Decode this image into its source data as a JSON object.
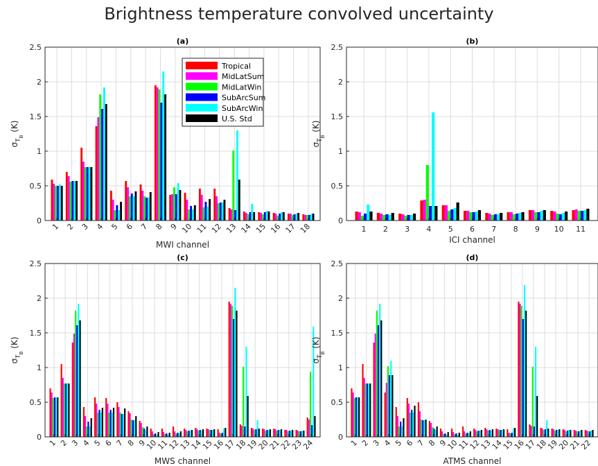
{
  "title": "Brightness temperature convolved uncertainty",
  "colors": {
    "Tropical": "#ff0000",
    "MidLatSum": "#ff00ff",
    "MidLatWin": "#00ff00",
    "SubArcSum": "#0000ff",
    "SubArcWin": "#00ffff",
    "U.S. Std": "#000000"
  },
  "chart_data": [
    {
      "type": "bar",
      "panel": "(a)",
      "xlabel": "MWI channel",
      "ylabel": "σ_TB (K)",
      "ylim": [
        0,
        2.5
      ],
      "yticks": [
        0,
        0.5,
        1,
        1.5,
        2,
        2.5
      ],
      "grid": true,
      "legend": "top-right",
      "categories": [
        "1",
        "2",
        "3",
        "4",
        "5",
        "6",
        "7",
        "8",
        "9",
        "10",
        "11",
        "12",
        "13",
        "14",
        "15",
        "16",
        "17",
        "18"
      ],
      "series": [
        {
          "name": "Tropical",
          "values": [
            0.59,
            0.7,
            1.05,
            1.36,
            0.43,
            0.57,
            0.52,
            1.95,
            0.37,
            0.4,
            0.46,
            0.46,
            0.18,
            0.13,
            0.12,
            0.11,
            0.1,
            0.09
          ]
        },
        {
          "name": "MidLatSum",
          "values": [
            0.53,
            0.64,
            0.85,
            1.49,
            0.3,
            0.48,
            0.43,
            1.92,
            0.38,
            0.3,
            0.37,
            0.35,
            0.16,
            0.11,
            0.11,
            0.1,
            0.1,
            0.08
          ]
        },
        {
          "name": "MidLatWin",
          "values": [
            0.5,
            0.56,
            0.77,
            1.82,
            0.15,
            0.35,
            0.35,
            1.89,
            0.48,
            0.16,
            0.19,
            0.25,
            1.01,
            0.09,
            0.09,
            0.07,
            0.08,
            0.08
          ]
        },
        {
          "name": "SubArcSum",
          "values": [
            0.5,
            0.57,
            0.77,
            1.61,
            0.22,
            0.39,
            0.33,
            1.7,
            0.38,
            0.21,
            0.27,
            0.26,
            0.15,
            0.12,
            0.12,
            0.1,
            0.09,
            0.08
          ]
        },
        {
          "name": "SubArcWin",
          "values": [
            0.52,
            0.57,
            0.77,
            1.92,
            0.15,
            0.35,
            0.33,
            2.15,
            0.54,
            0.16,
            0.2,
            0.26,
            1.3,
            0.24,
            0.14,
            0.12,
            0.1,
            0.09
          ]
        },
        {
          "name": "U.S. Std",
          "values": [
            0.5,
            0.57,
            0.77,
            1.68,
            0.27,
            0.42,
            0.41,
            1.82,
            0.44,
            0.22,
            0.31,
            0.3,
            0.59,
            0.12,
            0.13,
            0.12,
            0.11,
            0.1
          ]
        }
      ]
    },
    {
      "type": "bar",
      "panel": "(b)",
      "xlabel": "ICI channel",
      "ylabel": "σ_TB (K)",
      "ylim": [
        0,
        2.5
      ],
      "yticks": [
        0,
        0.5,
        1,
        1.5,
        2,
        2.5
      ],
      "grid": true,
      "categories": [
        "1",
        "2",
        "3",
        "4",
        "5",
        "6",
        "7",
        "8",
        "9",
        "10",
        "11"
      ],
      "series": [
        {
          "name": "Tropical",
          "values": [
            0.13,
            0.11,
            0.1,
            0.29,
            0.22,
            0.14,
            0.11,
            0.12,
            0.15,
            0.14,
            0.15
          ]
        },
        {
          "name": "MidLatSum",
          "values": [
            0.12,
            0.1,
            0.09,
            0.3,
            0.22,
            0.14,
            0.1,
            0.12,
            0.15,
            0.13,
            0.16
          ]
        },
        {
          "name": "MidLatWin",
          "values": [
            0.07,
            0.08,
            0.07,
            0.8,
            0.14,
            0.12,
            0.08,
            0.09,
            0.12,
            0.1,
            0.14
          ]
        },
        {
          "name": "SubArcSum",
          "values": [
            0.1,
            0.09,
            0.08,
            0.21,
            0.16,
            0.12,
            0.09,
            0.1,
            0.12,
            0.09,
            0.14
          ]
        },
        {
          "name": "SubArcWin",
          "values": [
            0.23,
            0.08,
            0.08,
            1.56,
            0.18,
            0.13,
            0.09,
            0.11,
            0.14,
            0.11,
            0.15
          ]
        },
        {
          "name": "U.S. Std",
          "values": [
            0.13,
            0.11,
            0.1,
            0.21,
            0.26,
            0.15,
            0.11,
            0.12,
            0.15,
            0.13,
            0.17
          ]
        }
      ]
    },
    {
      "type": "bar",
      "panel": "(c)",
      "xlabel": "MWS channel",
      "ylabel": "σ_TB (K)",
      "ylim": [
        0,
        2.5
      ],
      "yticks": [
        0,
        0.5,
        1,
        1.5,
        2,
        2.5
      ],
      "grid": true,
      "categories": [
        "1",
        "2",
        "3",
        "4",
        "5",
        "6",
        "7",
        "8",
        "9",
        "10",
        "11",
        "12",
        "13",
        "14",
        "15",
        "16",
        "17",
        "18",
        "19",
        "20",
        "21",
        "22",
        "23",
        "24"
      ],
      "series": [
        {
          "name": "Tropical",
          "values": [
            0.7,
            1.05,
            1.36,
            0.43,
            0.57,
            0.56,
            0.5,
            0.37,
            0.23,
            0.12,
            0.12,
            0.15,
            0.12,
            0.13,
            0.12,
            0.11,
            1.95,
            0.18,
            0.13,
            0.12,
            0.12,
            0.1,
            0.1,
            0.28
          ]
        },
        {
          "name": "MidLatSum",
          "values": [
            0.64,
            0.85,
            1.49,
            0.3,
            0.48,
            0.48,
            0.43,
            0.34,
            0.2,
            0.08,
            0.07,
            0.08,
            0.1,
            0.11,
            0.11,
            0.06,
            1.92,
            0.16,
            0.12,
            0.11,
            0.11,
            0.1,
            0.09,
            0.25
          ]
        },
        {
          "name": "MidLatWin",
          "values": [
            0.56,
            0.77,
            1.82,
            0.15,
            0.35,
            0.35,
            0.35,
            0.25,
            0.14,
            0.04,
            0.04,
            0.05,
            0.08,
            0.09,
            0.1,
            0.05,
            1.89,
            1.01,
            0.1,
            0.09,
            0.09,
            0.08,
            0.08,
            0.94
          ]
        },
        {
          "name": "SubArcSum",
          "values": [
            0.57,
            0.77,
            1.61,
            0.22,
            0.39,
            0.39,
            0.33,
            0.24,
            0.12,
            0.05,
            0.05,
            0.06,
            0.09,
            0.1,
            0.1,
            0.06,
            1.7,
            0.15,
            0.11,
            0.1,
            0.1,
            0.09,
            0.08,
            0.17
          ]
        },
        {
          "name": "SubArcWin",
          "values": [
            0.57,
            0.77,
            1.92,
            0.15,
            0.35,
            0.35,
            0.33,
            0.24,
            0.1,
            0.03,
            0.03,
            0.05,
            0.09,
            0.09,
            0.1,
            0.12,
            2.15,
            1.3,
            0.24,
            0.1,
            0.1,
            0.09,
            0.09,
            1.59
          ]
        },
        {
          "name": "U.S. Std",
          "values": [
            0.57,
            0.77,
            1.68,
            0.27,
            0.42,
            0.42,
            0.41,
            0.3,
            0.15,
            0.07,
            0.06,
            0.08,
            0.1,
            0.11,
            0.11,
            0.13,
            1.82,
            0.59,
            0.12,
            0.11,
            0.11,
            0.1,
            0.09,
            0.3
          ]
        }
      ]
    },
    {
      "type": "bar",
      "panel": "(d)",
      "xlabel": "ATMS channel",
      "ylabel": "σ_TB (K)",
      "ylim": [
        0,
        2.5
      ],
      "yticks": [
        0,
        0.5,
        1,
        1.5,
        2,
        2.5
      ],
      "grid": true,
      "categories": [
        "1",
        "2",
        "3",
        "4",
        "5",
        "6",
        "7",
        "8",
        "9",
        "10",
        "11",
        "12",
        "13",
        "14",
        "15",
        "16",
        "17",
        "18",
        "19",
        "20",
        "21",
        "22"
      ],
      "series": [
        {
          "name": "Tropical",
          "values": [
            0.7,
            1.05,
            1.36,
            0.64,
            0.43,
            0.56,
            0.5,
            0.23,
            0.12,
            0.12,
            0.15,
            0.12,
            0.13,
            0.12,
            0.11,
            1.95,
            0.18,
            0.13,
            0.12,
            0.11,
            0.1,
            0.1
          ]
        },
        {
          "name": "MidLatSum",
          "values": [
            0.64,
            0.85,
            1.49,
            0.78,
            0.3,
            0.48,
            0.37,
            0.2,
            0.08,
            0.07,
            0.08,
            0.1,
            0.11,
            0.11,
            0.06,
            1.92,
            0.16,
            0.12,
            0.11,
            0.1,
            0.09,
            0.09
          ]
        },
        {
          "name": "MidLatWin",
          "values": [
            0.56,
            0.77,
            1.82,
            1.02,
            0.15,
            0.35,
            0.25,
            0.14,
            0.04,
            0.04,
            0.05,
            0.08,
            0.09,
            0.1,
            0.05,
            1.89,
            1.01,
            0.1,
            0.09,
            0.08,
            0.08,
            0.08
          ]
        },
        {
          "name": "SubArcSum",
          "values": [
            0.57,
            0.77,
            1.61,
            0.89,
            0.22,
            0.39,
            0.24,
            0.12,
            0.05,
            0.05,
            0.06,
            0.09,
            0.1,
            0.1,
            0.06,
            1.7,
            0.15,
            0.11,
            0.1,
            0.09,
            0.08,
            0.08
          ]
        },
        {
          "name": "SubArcWin",
          "values": [
            0.57,
            0.77,
            1.92,
            1.1,
            0.15,
            0.35,
            0.24,
            0.1,
            0.03,
            0.03,
            0.05,
            0.09,
            0.09,
            0.1,
            0.12,
            2.19,
            1.3,
            0.24,
            0.1,
            0.1,
            0.09,
            0.09
          ]
        },
        {
          "name": "U.S. Std",
          "values": [
            0.57,
            0.77,
            1.68,
            0.89,
            0.27,
            0.45,
            0.25,
            0.15,
            0.07,
            0.06,
            0.08,
            0.1,
            0.11,
            0.11,
            0.13,
            1.82,
            0.59,
            0.12,
            0.11,
            0.1,
            0.1,
            0.1
          ]
        }
      ]
    }
  ]
}
